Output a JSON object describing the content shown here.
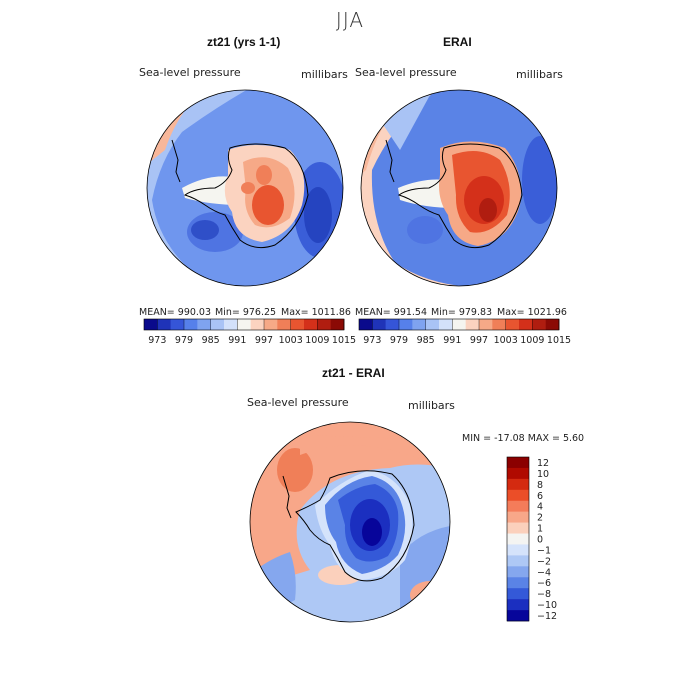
{
  "figure": {
    "title": "JJA"
  },
  "chart_data": [
    {
      "type": "heatmap",
      "projection": "south-polar stereographic",
      "title": "zt21 (yrs 1-1)",
      "variable": "Sea-level pressure",
      "units": "millibars",
      "mean_label": "MEAN= 990.03",
      "min_label": "Min= 976.25",
      "max_label": "Max= 1011.86",
      "colorbar_levels": [
        "973",
        "979",
        "985",
        "991",
        "997",
        "1003",
        "1009",
        "1015"
      ]
    },
    {
      "type": "heatmap",
      "projection": "south-polar stereographic",
      "title": "ERAI",
      "variable": "Sea-level pressure",
      "units": "millibars",
      "mean_label": "MEAN= 991.54",
      "min_label": "Min= 979.83",
      "max_label": "Max= 1021.96",
      "colorbar_levels": [
        "973",
        "979",
        "985",
        "991",
        "997",
        "1003",
        "1009",
        "1015"
      ]
    },
    {
      "type": "heatmap",
      "projection": "south-polar stereographic",
      "title": "zt21 - ERAI",
      "variable": "Sea-level pressure",
      "units": "millibars",
      "minmax_label": "MIN = -17.08 MAX =    5.60",
      "colorbar_levels": [
        "12",
        "10",
        "8",
        "6",
        "4",
        "2",
        "1",
        "0",
        "−1",
        "−2",
        "−4",
        "−6",
        "−8",
        "−10",
        "−12"
      ]
    }
  ],
  "palette": {
    "abs": [
      "#0a0a8c",
      "#1f33b8",
      "#3555d8",
      "#5680ea",
      "#7fa3f0",
      "#a9c3f5",
      "#d3e1fa",
      "#f5f5f0",
      "#fbd3c0",
      "#f6a987",
      "#f07f58",
      "#e85530",
      "#d4301a",
      "#b01d10",
      "#8b0a05"
    ],
    "diff": [
      "#8b0000",
      "#b00a00",
      "#d42a10",
      "#eb4e28",
      "#f47c5a",
      "#f8a789",
      "#fbd0bc",
      "#f4f4f2",
      "#d5e3fb",
      "#aec8f5",
      "#85a7ee",
      "#5a83e6",
      "#3459d8",
      "#1b2fc0",
      "#07059a"
    ]
  }
}
